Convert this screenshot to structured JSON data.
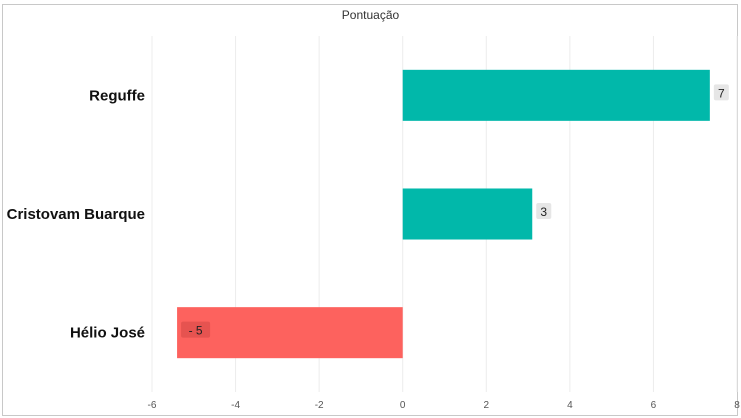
{
  "chart_data": {
    "type": "bar",
    "orientation": "horizontal",
    "title": "Pontuação",
    "categories": [
      "Reguffe",
      "Cristovam Buarque",
      "Hélio José"
    ],
    "values": [
      7.35,
      3.1,
      -5.4
    ],
    "data_labels": [
      "7",
      "3",
      "- 5"
    ],
    "xlim": [
      -6,
      8
    ],
    "xticks": [
      -6,
      -4,
      -2,
      0,
      2,
      4,
      6,
      8
    ],
    "xtick_labels": [
      "-6",
      "-4",
      "-2",
      "0",
      "2",
      "4",
      "6",
      "8"
    ],
    "xlabel": "",
    "ylabel": "",
    "grid": "vertical",
    "colors": {
      "positive": "#01b8aa",
      "negative": "#fd625e",
      "label_bg": "#e6e6e6"
    }
  }
}
